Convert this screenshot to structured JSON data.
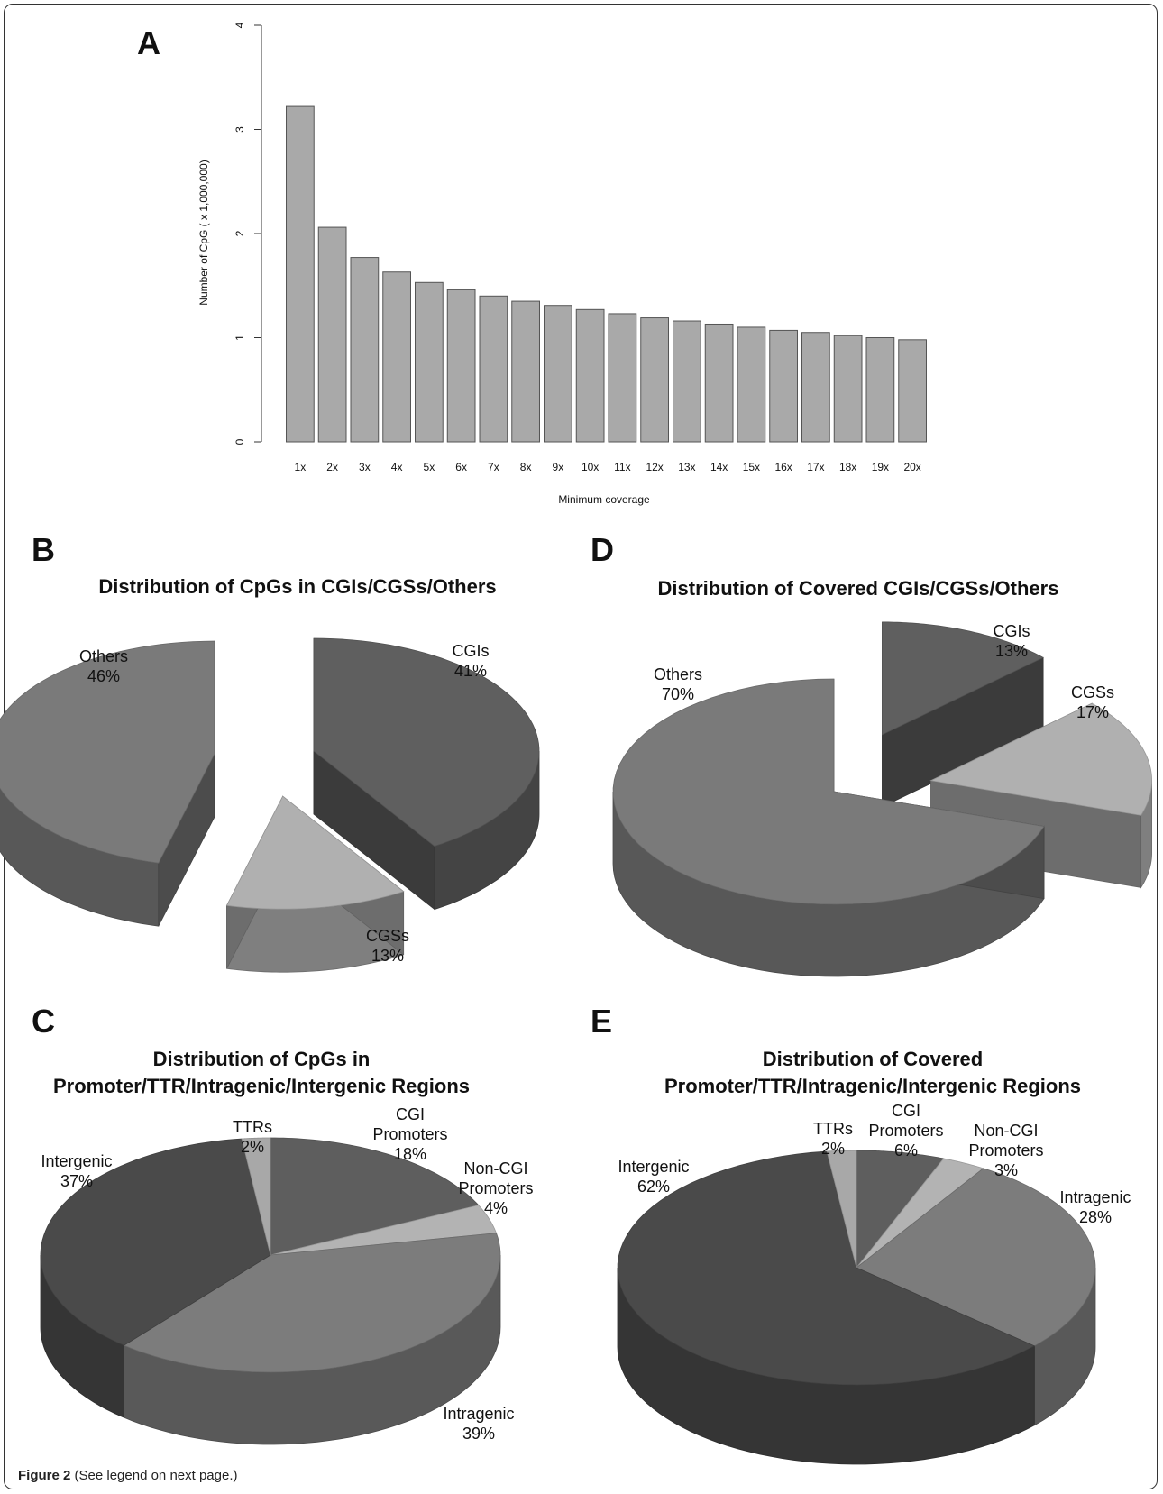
{
  "caption": {
    "label": "Figure 2",
    "text": "(See legend on next page.)"
  },
  "chart_data": [
    {
      "panel": "A",
      "type": "bar",
      "title": "",
      "xlabel": "Minimum coverage",
      "ylabel": "Number of CpG ( x 1,000,000)",
      "ylim": [
        0,
        4
      ],
      "yticks": [
        0,
        1,
        2,
        3,
        4
      ],
      "categories": [
        "1x",
        "2x",
        "3x",
        "4x",
        "5x",
        "6x",
        "7x",
        "8x",
        "9x",
        "10x",
        "11x",
        "12x",
        "13x",
        "14x",
        "15x",
        "16x",
        "17x",
        "18x",
        "19x",
        "20x"
      ],
      "values": [
        3.22,
        2.06,
        1.77,
        1.63,
        1.53,
        1.46,
        1.4,
        1.35,
        1.31,
        1.27,
        1.23,
        1.19,
        1.16,
        1.13,
        1.1,
        1.07,
        1.05,
        1.02,
        1.0,
        0.98
      ],
      "colors": {
        "bar": "#a9a9a9",
        "stroke": "#555555"
      }
    },
    {
      "panel": "B",
      "type": "pie",
      "title": "Distribution of CpGs in CGIs/CGSs/Others",
      "slices": [
        {
          "label": "CGIs",
          "value": "41%",
          "pct": 41,
          "color": "#5f5f5f"
        },
        {
          "label": "CGSs",
          "value": "13%",
          "pct": 13,
          "color": "#b0b0b0"
        },
        {
          "label": "Others",
          "value": "46%",
          "pct": 46,
          "color": "#7a7a7a"
        }
      ]
    },
    {
      "panel": "D",
      "type": "pie",
      "title": "Distribution of Covered CGIs/CGSs/Others",
      "slices": [
        {
          "label": "CGIs",
          "value": "13%",
          "pct": 13,
          "color": "#5f5f5f"
        },
        {
          "label": "CGSs",
          "value": "17%",
          "pct": 17,
          "color": "#b0b0b0"
        },
        {
          "label": "Others",
          "value": "70%",
          "pct": 70,
          "color": "#7a7a7a"
        }
      ]
    },
    {
      "panel": "C",
      "type": "pie",
      "title": "Distribution of CpGs in Promoter/TTR/Intragenic/Intergenic Regions",
      "title_lines": [
        "Distribution of CpGs in",
        "Promoter/TTR/Intragenic/Intergenic Regions"
      ],
      "slices": [
        {
          "label": "CGI Promoters",
          "label_lines": [
            "CGI",
            "Promoters"
          ],
          "value": "18%",
          "pct": 18,
          "color": "#5e5e5e"
        },
        {
          "label": "Non-CGI Promoters",
          "label_lines": [
            "Non-CGI",
            "Promoters"
          ],
          "value": "4%",
          "pct": 4,
          "color": "#b3b3b3"
        },
        {
          "label": "Intragenic",
          "label_lines": [
            "Intragenic"
          ],
          "value": "39%",
          "pct": 39,
          "color": "#7c7c7c"
        },
        {
          "label": "Intergenic",
          "label_lines": [
            "Intergenic"
          ],
          "value": "37%",
          "pct": 37,
          "color": "#4a4a4a"
        },
        {
          "label": "TTRs",
          "label_lines": [
            "TTRs"
          ],
          "value": "2%",
          "pct": 2,
          "color": "#a8a8a8"
        }
      ]
    },
    {
      "panel": "E",
      "type": "pie",
      "title": "Distribution of Covered Promoter/TTR/Intragenic/Intergenic Regions",
      "title_lines": [
        "Distribution of Covered",
        "Promoter/TTR/Intragenic/Intergenic Regions"
      ],
      "slices": [
        {
          "label": "CGI Promoters",
          "label_lines": [
            "CGI",
            "Promoters"
          ],
          "value": "6%",
          "pct": 6,
          "color": "#5e5e5e"
        },
        {
          "label": "Non-CGI Promoters",
          "label_lines": [
            "Non-CGI",
            "Promoters"
          ],
          "value": "3%",
          "pct": 3,
          "color": "#b3b3b3"
        },
        {
          "label": "Intragenic",
          "label_lines": [
            "Intragenic"
          ],
          "value": "28%",
          "pct": 28,
          "color": "#7c7c7c"
        },
        {
          "label": "Intergenic",
          "label_lines": [
            "Intergenic"
          ],
          "value": "62%",
          "pct": 62,
          "color": "#4a4a4a"
        },
        {
          "label": "TTRs",
          "label_lines": [
            "TTRs"
          ],
          "value": "2%",
          "pct": 2,
          "color": "#a8a8a8"
        }
      ]
    }
  ]
}
